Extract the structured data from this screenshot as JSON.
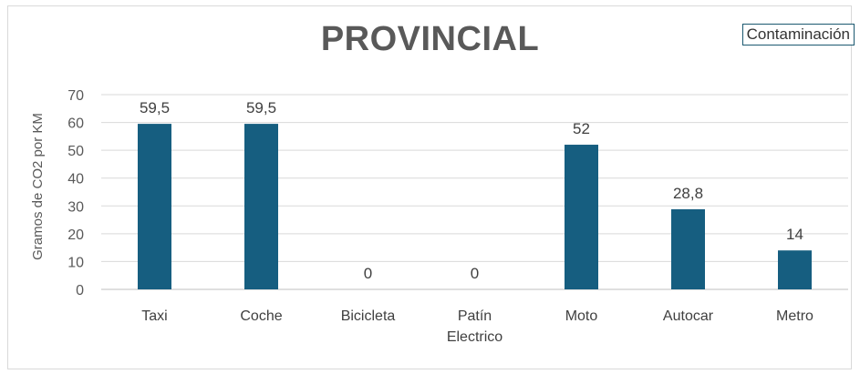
{
  "legend_tag": "Contaminación",
  "chart_data": {
    "type": "bar",
    "title": "PROVINCIAL",
    "ylabel": "Gramos de CO2 por KM",
    "xlabel": "",
    "categories": [
      [
        "Taxi"
      ],
      [
        "Coche"
      ],
      [
        "Bicicleta"
      ],
      [
        "Patín",
        "Electrico"
      ],
      [
        "Moto"
      ],
      [
        "Autocar"
      ],
      [
        "Metro"
      ]
    ],
    "values": [
      59.5,
      59.5,
      0,
      0,
      52,
      28.8,
      14
    ],
    "data_labels": [
      "59,5",
      "59,5",
      "0",
      "0",
      "52",
      "28,8",
      "14"
    ],
    "ylim": [
      0,
      70
    ],
    "yticks": [
      0,
      10,
      20,
      30,
      40,
      50,
      60,
      70
    ],
    "bar_color": "#165e80",
    "grid": true
  }
}
